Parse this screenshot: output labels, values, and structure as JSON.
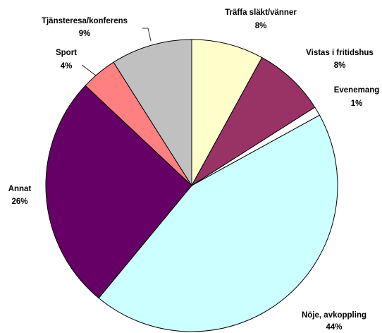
{
  "chart_data": {
    "type": "pie",
    "categories": [
      "Träffa släkt/vänner",
      "Vistas i fritidshus",
      "Evenemang",
      "Nöje, avkoppling",
      "Annat",
      "Sport",
      "Tjänsteresa/konferens"
    ],
    "values": [
      8,
      8,
      1,
      44,
      26,
      4,
      9
    ],
    "value_labels": [
      "8%",
      "8%",
      "1%",
      "44%",
      "26%",
      "4%",
      "9%"
    ],
    "colors": [
      "#FFFFCC",
      "#993366",
      "#FFFFFF",
      "#CCFFFF",
      "#660066",
      "#FF8080",
      "#C0C0C0"
    ]
  }
}
